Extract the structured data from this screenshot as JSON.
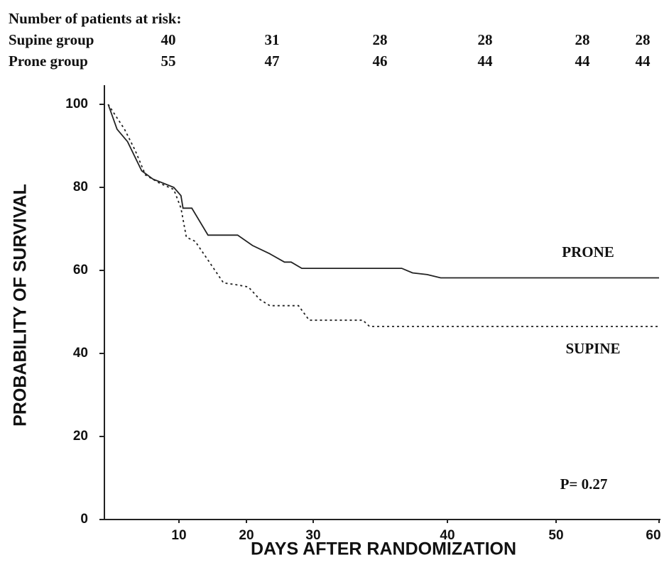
{
  "risk_table": {
    "title": "Number of patients at risk:",
    "rows": [
      {
        "label": "Supine group",
        "values": [
          40,
          31,
          28,
          28,
          28,
          28
        ]
      },
      {
        "label": "Prone group",
        "values": [
          55,
          47,
          46,
          44,
          44,
          44
        ]
      }
    ]
  },
  "chart_data": {
    "type": "line",
    "xlabel": "DAYS AFTER RANDOMIZATION",
    "ylabel": "PROBABILITY OF SURVIVAL",
    "annotation": "P= 0.27",
    "xlim": [
      0,
      60
    ],
    "xticks": [
      10,
      20,
      30,
      40,
      50,
      60
    ],
    "ylim": [
      0,
      100
    ],
    "yticks": [
      0,
      20,
      40,
      60,
      80,
      100
    ],
    "grid": false,
    "series": [
      {
        "name": "PRONE",
        "color": "#222222",
        "line_style": "solid",
        "x": [
          0.5,
          1.7,
          3.1,
          5.0,
          6.5,
          9.3,
          10.3,
          10.6,
          11.9,
          14.3,
          18.7,
          20.9,
          23.5,
          25.7,
          26.7,
          28.3,
          36.6,
          37.4,
          38.5,
          39.5,
          60
        ],
        "values": [
          100,
          94,
          91,
          84,
          82,
          80,
          78,
          75,
          75,
          68.5,
          68.5,
          66,
          64,
          62,
          62,
          60.5,
          60.5,
          59.4,
          59,
          58.2,
          58.2
        ]
      },
      {
        "name": "SUPINE",
        "color": "#222222",
        "line_style": "dotted",
        "x": [
          0.5,
          2.7,
          4.1,
          5.5,
          7.4,
          9.3,
          10.3,
          11.1,
          12.4,
          14.5,
          16.6,
          18.7,
          20.3,
          22.0,
          23.5,
          27.8,
          29.4,
          33.7,
          34.2,
          60
        ],
        "values": [
          100,
          94,
          89,
          83,
          81,
          79.5,
          75,
          68,
          67,
          62,
          57,
          56.5,
          56,
          53,
          51.5,
          51.5,
          48,
          48,
          46.5,
          46.5
        ]
      }
    ]
  }
}
